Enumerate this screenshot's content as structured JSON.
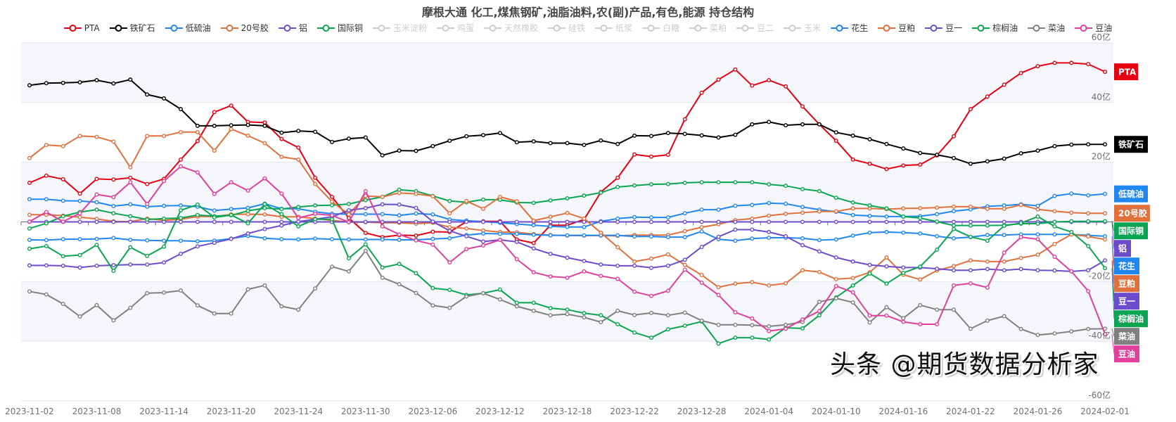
{
  "chart_data": {
    "type": "line",
    "title": "摩根大通 化工,煤焦钢矿,油脂油料,农(副)产品,有色,能源 持仓结构",
    "ylim": [
      -60,
      60
    ],
    "y_ticks": [
      "60亿",
      "40亿",
      "20亿",
      "-20亿",
      "-40亿",
      "-60亿"
    ],
    "grid": true,
    "legend_position": "top",
    "x_tick_labels": [
      "2023-11-02",
      "2023-11-08",
      "2023-11-14",
      "2023-11-20",
      "2023-11-24",
      "2023-11-30",
      "2023-12-06",
      "2023-12-12",
      "2023-12-18",
      "2023-12-22",
      "2023-12-28",
      "2024-01-04",
      "2024-01-10",
      "2024-01-16",
      "2024-01-22",
      "2024-01-26",
      "2024-02-01"
    ],
    "categories": [
      "2023-11-02",
      "2023-11-03",
      "2023-11-06",
      "2023-11-07",
      "2023-11-08",
      "2023-11-09",
      "2023-11-10",
      "2023-11-13",
      "2023-11-14",
      "2023-11-15",
      "2023-11-16",
      "2023-11-17",
      "2023-11-20",
      "2023-11-21",
      "2023-11-22",
      "2023-11-23",
      "2023-11-24",
      "2023-11-27",
      "2023-11-28",
      "2023-11-29",
      "2023-11-30",
      "2023-12-01",
      "2023-12-04",
      "2023-12-05",
      "2023-12-06",
      "2023-12-07",
      "2023-12-08",
      "2023-12-11",
      "2023-12-12",
      "2023-12-13",
      "2023-12-14",
      "2023-12-15",
      "2023-12-18",
      "2023-12-19",
      "2023-12-20",
      "2023-12-21",
      "2023-12-22",
      "2023-12-25",
      "2023-12-26",
      "2023-12-27",
      "2023-12-28",
      "2023-12-29",
      "2024-01-02",
      "2024-01-03",
      "2024-01-04",
      "2024-01-05",
      "2024-01-08",
      "2024-01-09",
      "2024-01-10",
      "2024-01-11",
      "2024-01-12",
      "2024-01-15",
      "2024-01-16",
      "2024-01-17",
      "2024-01-18",
      "2024-01-19",
      "2024-01-22",
      "2024-01-23",
      "2024-01-24",
      "2024-01-25",
      "2024-01-26",
      "2024-01-29",
      "2024-01-30",
      "2024-01-31",
      "2024-02-01"
    ],
    "legend": [
      {
        "name": "PTA",
        "color": "#e60012",
        "active": true
      },
      {
        "name": "铁矿石",
        "color": "#000000",
        "active": true
      },
      {
        "name": "低硫油",
        "color": "#1e88f0",
        "active": true
      },
      {
        "name": "20号胶",
        "color": "#e2703c",
        "active": true
      },
      {
        "name": "铝",
        "color": "#6c4ccc",
        "active": true
      },
      {
        "name": "国际铜",
        "color": "#0aa552",
        "active": true
      },
      {
        "name": "玉米淀粉",
        "color": "#cccccc",
        "active": false
      },
      {
        "name": "鸡蛋",
        "color": "#cccccc",
        "active": false
      },
      {
        "name": "天然橡胶",
        "color": "#cccccc",
        "active": false
      },
      {
        "name": "硅铁",
        "color": "#cccccc",
        "active": false
      },
      {
        "name": "纸浆",
        "color": "#cccccc",
        "active": false
      },
      {
        "name": "白糖",
        "color": "#cccccc",
        "active": false
      },
      {
        "name": "菜粕",
        "color": "#cccccc",
        "active": false
      },
      {
        "name": "豆二",
        "color": "#cccccc",
        "active": false
      },
      {
        "name": "玉米",
        "color": "#cccccc",
        "active": false
      },
      {
        "name": "花生",
        "color": "#1e88f0",
        "active": true
      },
      {
        "name": "豆粕",
        "color": "#e2703c",
        "active": true
      },
      {
        "name": "豆一",
        "color": "#6c4ccc",
        "active": true
      },
      {
        "name": "棕榈油",
        "color": "#0aa552",
        "active": true
      },
      {
        "name": "菜油",
        "color": "#808080",
        "active": true
      },
      {
        "name": "豆油",
        "color": "#e0409b",
        "active": true
      }
    ],
    "series": [
      {
        "name": "PTA",
        "color": "#e60012",
        "values": [
          13.1,
          15.5,
          14.3,
          9.5,
          14.4,
          14.2,
          14.8,
          12.7,
          14.4,
          20.9,
          27.1,
          36.8,
          39.0,
          33.5,
          33.3,
          27.8,
          24.9,
          14.8,
          8.4,
          1.3,
          -3.7,
          -5.1,
          -4.4,
          -4.6,
          -3.3,
          -3.4,
          0.1,
          0.2,
          0.2,
          -5.9,
          -7.1,
          -1.1,
          -1.1,
          0.8,
          10.0,
          14.8,
          22.6,
          21.9,
          22.5,
          34.4,
          43.3,
          47.7,
          51.1,
          45.7,
          47.5,
          45.4,
          38.7,
          32.7,
          27.2,
          20.9,
          19.5,
          17.7,
          18.9,
          19.2,
          22.3,
          28.7,
          37.8,
          42.0,
          46.0,
          49.9,
          52.2,
          53.3,
          53.3,
          52.9,
          50.3
        ]
      },
      {
        "name": "铁矿石",
        "color": "#000000",
        "values": [
          45.8,
          46.5,
          46.6,
          46.8,
          47.5,
          46.4,
          47.7,
          42.7,
          41.4,
          37.8,
          32.2,
          32.2,
          32.4,
          32.5,
          32.2,
          29.9,
          30.5,
          30.2,
          26.8,
          27.9,
          28.3,
          22.3,
          23.9,
          23.8,
          25.4,
          27.2,
          28.7,
          29.1,
          29.8,
          26.7,
          27.0,
          26.4,
          26.4,
          25.8,
          27.3,
          26.1,
          28.9,
          28.8,
          29.8,
          29.5,
          29.0,
          28.3,
          29.2,
          32.7,
          33.5,
          32.4,
          32.7,
          32.7,
          30.0,
          28.9,
          27.7,
          26.1,
          24.6,
          23.1,
          22.5,
          21.4,
          19.5,
          20.3,
          21.2,
          23.0,
          23.9,
          25.4,
          25.9,
          26.0,
          26.0
        ]
      },
      {
        "name": "低硫油",
        "color": "#1e88f0",
        "values": [
          7.6,
          7.6,
          7.1,
          7.0,
          6.6,
          5.3,
          5.9,
          5.1,
          5.4,
          5.5,
          5.1,
          3.8,
          4.3,
          4.7,
          6.1,
          4.4,
          4.4,
          3.4,
          2.7,
          2.6,
          2.6,
          2.6,
          2.2,
          2.8,
          2.5,
          0.8,
          0.4,
          0.1,
          -0.3,
          -0.7,
          -1.1,
          -1.5,
          -1.7,
          -1.7,
          0.2,
          1.1,
          1.6,
          1.5,
          1.5,
          2.9,
          4.1,
          4.1,
          5.4,
          5.7,
          6.3,
          6.1,
          5.0,
          4.1,
          3.4,
          2.3,
          2.0,
          1.8,
          1.8,
          1.9,
          2.6,
          3.6,
          4.2,
          5.2,
          5.5,
          5.9,
          5.4,
          8.7,
          9.5,
          8.9,
          9.4
        ]
      },
      {
        "name": "20号胶",
        "color": "#e2703c",
        "values": [
          2.4,
          2.4,
          2.1,
          1.6,
          1.0,
          0.2,
          0.1,
          1.1,
          0.5,
          0.9,
          1.8,
          1.8,
          2.5,
          2.6,
          2.5,
          1.7,
          1.7,
          1.1,
          0.5,
          -0.1,
          -0.1,
          -0.3,
          -0.3,
          -0.6,
          -0.3,
          -1.8,
          -2.2,
          -2.9,
          -3.4,
          -3.5,
          -4.1,
          -4.4,
          -4.6,
          -4.6,
          -4.6,
          -4.7,
          -4.4,
          -4.4,
          -4.4,
          -3.1,
          -1.8,
          -0.8,
          0.6,
          1.1,
          2.1,
          2.7,
          3.1,
          3.5,
          3.5,
          4.5,
          4.5,
          4.3,
          4.5,
          4.6,
          4.8,
          5.1,
          5.1,
          4.4,
          4.4,
          5.7,
          4.2,
          3.6,
          3.1,
          2.9,
          2.9
        ]
      },
      {
        "name": "铝",
        "color": "#6c4ccc",
        "values": [
          0,
          0,
          0,
          0,
          0,
          0,
          0,
          0,
          0,
          0,
          0,
          0,
          0,
          0,
          0,
          0,
          0,
          0,
          0,
          0,
          0,
          0,
          0,
          0,
          0,
          0,
          0,
          0,
          0,
          0,
          0,
          0,
          0,
          0,
          0,
          0,
          0,
          0,
          0,
          0,
          0,
          0,
          0,
          0,
          0,
          0,
          0,
          0,
          0,
          0,
          0,
          0,
          0,
          0,
          0,
          0,
          0,
          0,
          0,
          0,
          0,
          0,
          0,
          0,
          0
        ]
      },
      {
        "name": "国际铜",
        "color": "#0aa552",
        "values": [
          -2.2,
          -0.5,
          1.9,
          3.3,
          4.1,
          2.9,
          1.9,
          0.8,
          1.1,
          1.3,
          2.3,
          1.9,
          2.2,
          3.7,
          4.6,
          4.3,
          5.0,
          5.5,
          5.6,
          6.0,
          7.3,
          8.4,
          10.8,
          10.3,
          8.7,
          7.0,
          6.6,
          7.5,
          7.4,
          6.5,
          6.4,
          7.2,
          7.9,
          8.8,
          9.8,
          11.7,
          12.2,
          12.6,
          12.7,
          13.1,
          13.3,
          13.3,
          13.3,
          13.3,
          12.6,
          12.1,
          11.0,
          10.3,
          8.1,
          6.5,
          5.5,
          4.5,
          1.8,
          1.3,
          0.1,
          -1.2,
          -1.2,
          -1.2,
          -1.1,
          -0.6,
          -0.6,
          0,
          0.2,
          0.2,
          0.2
        ]
      },
      {
        "name": "花生",
        "color": "#1e88f0",
        "values": [
          -6.0,
          -6.1,
          -5.8,
          -5.8,
          -5.7,
          -5.4,
          -6.0,
          -6.2,
          -6.3,
          -6.3,
          -6.5,
          -6.3,
          -5.6,
          -4.7,
          -5.5,
          -5.8,
          -5.9,
          -5.6,
          -5.8,
          -5.9,
          -5.9,
          -5.9,
          -6.0,
          -6.0,
          -5.7,
          -5.5,
          -4.4,
          -3.9,
          -4.0,
          -4.0,
          -4.3,
          -4.5,
          -4.5,
          -4.5,
          -4.5,
          -4.5,
          -4.9,
          -4.9,
          -5.1,
          -5.1,
          -3.2,
          -5.8,
          -6.3,
          -5.6,
          -5.3,
          -5.3,
          -5.5,
          -6.1,
          -5.9,
          -4.6,
          -3.6,
          -3.4,
          -3.6,
          -3.9,
          -4.8,
          -5.5,
          -5.1,
          -4.4,
          -4.4,
          -4.2,
          -4.2,
          -4.2,
          -4.2,
          -4.5,
          -4.8
        ]
      },
      {
        "name": "豆粕",
        "color": "#e2703c",
        "values": [
          21.4,
          25.8,
          25.4,
          28.8,
          28.5,
          26.9,
          18.3,
          28.8,
          28.8,
          30.1,
          30.1,
          23.9,
          31.1,
          28.9,
          26.4,
          21.8,
          20.9,
          12.7,
          6.8,
          2.5,
          8.7,
          8.4,
          9.7,
          9.4,
          8.6,
          2.9,
          7.0,
          4.4,
          8.4,
          6.9,
          0.4,
          1.7,
          3.0,
          1.1,
          -3.6,
          -8.5,
          -13.3,
          -12.3,
          -10.9,
          -14.4,
          -17.8,
          -21.9,
          -20.7,
          -20.2,
          -21.3,
          -20.6,
          -16.2,
          -16.8,
          -19.2,
          -18.8,
          -16.9,
          -11.9,
          -17.7,
          -19.3,
          -16.3,
          -14.8,
          -12.9,
          -13.3,
          -13.3,
          -12.1,
          -11.0,
          -7.4,
          -4.2,
          -4.9,
          -5.9
        ]
      },
      {
        "name": "豆一",
        "color": "#6c4ccc",
        "values": [
          -14.6,
          -14.6,
          -14.7,
          -15.3,
          -14.7,
          -14.5,
          -14.3,
          -14.3,
          -13.6,
          -10.7,
          -8.2,
          -7.0,
          -5.7,
          -3.9,
          -2.4,
          -1.2,
          0.1,
          0.9,
          1.7,
          3.9,
          4.6,
          5.9,
          5.8,
          4.7,
          0.1,
          -3.0,
          -4.8,
          -6.6,
          -6.0,
          -6.7,
          -8.9,
          -10.7,
          -12.0,
          -13.1,
          -14.3,
          -14.7,
          -14.7,
          -15.4,
          -14.7,
          -12.7,
          -8.4,
          -5.0,
          -2.6,
          -2.6,
          -3.4,
          -4.8,
          -7.8,
          -9.9,
          -11.9,
          -13.3,
          -14.4,
          -14.9,
          -15.3,
          -15.3,
          -15.7,
          -16.2,
          -16.2,
          -15.8,
          -16.2,
          -15.8,
          -16.2,
          -16.3,
          -16.6,
          -16.2,
          -12.9
        ]
      },
      {
        "name": "棕榈油",
        "color": "#0aa552",
        "values": [
          -9.0,
          -8.1,
          -11.5,
          -11.1,
          -7.7,
          -16.4,
          -8.5,
          -11.4,
          -8.3,
          3.9,
          5.8,
          1.5,
          2.3,
          -0.5,
          6.0,
          2.6,
          -1.5,
          0.9,
          0.9,
          -12.2,
          -7.5,
          -15.3,
          -14.1,
          -17.2,
          -22.2,
          -22.8,
          -24.5,
          -23.9,
          -22.7,
          -27.1,
          -27.1,
          -28.9,
          -29.4,
          -30.6,
          -31.3,
          -34.3,
          -37.1,
          -38.8,
          -36.0,
          -34.8,
          -33.4,
          -40.8,
          -38.8,
          -38.8,
          -39.4,
          -35.5,
          -35.7,
          -31.3,
          -25.3,
          -21.3,
          -17.3,
          -20.7,
          -17.1,
          -15.0,
          -9.3,
          -2.4,
          -5.0,
          -6.3,
          -1.3,
          -0.4,
          1.8,
          -1.5,
          -3.4,
          -8.1,
          -15.5
        ]
      },
      {
        "name": "菜油",
        "color": "#808080",
        "values": [
          -23.3,
          -24.3,
          -27.5,
          -31.7,
          -27.9,
          -33.0,
          -28.8,
          -23.9,
          -23.7,
          -23.0,
          -28.0,
          -30.7,
          -30.7,
          -22.6,
          -21.3,
          -28.3,
          -29.4,
          -22.3,
          -15.0,
          -16.6,
          -9.7,
          -18.7,
          -20.9,
          -23.8,
          -28.0,
          -28.8,
          -25.0,
          -23.9,
          -26.0,
          -28.3,
          -29.8,
          -31.3,
          -30.9,
          -32.0,
          -33.6,
          -29.8,
          -31.2,
          -30.5,
          -31.3,
          -30.4,
          -33.1,
          -34.5,
          -34.5,
          -34.6,
          -35.0,
          -34.5,
          -33.5,
          -26.8,
          -25.6,
          -27.0,
          -33.7,
          -28.6,
          -32.3,
          -27.9,
          -29.4,
          -29.4,
          -35.8,
          -33.1,
          -31.6,
          -35.9,
          -37.9,
          -37.4,
          -36.7,
          -35.9,
          -35.8
        ]
      },
      {
        "name": "豆油",
        "color": "#e0409b",
        "values": [
          0.1,
          3.3,
          0.1,
          2.9,
          9.2,
          8.3,
          13.3,
          6.0,
          13.7,
          18.6,
          16.6,
          9.4,
          13.3,
          10.5,
          14.6,
          9.5,
          1.3,
          2.7,
          2.2,
          -0.1,
          10.3,
          -1.5,
          -4.2,
          -6.2,
          -7.6,
          -13.6,
          -9.1,
          -7.9,
          -6.0,
          -12.5,
          -16.9,
          -18.3,
          -18.7,
          -16.6,
          -18.1,
          -19.1,
          -23.4,
          -24.8,
          -23.1,
          -16.0,
          -20.4,
          -24.5,
          -30.3,
          -32.4,
          -36.6,
          -35.8,
          -32.7,
          -29.9,
          -21.5,
          -23.6,
          -31.4,
          -31.4,
          -33.5,
          -34.3,
          -34.3,
          -21.3,
          -20.6,
          -22.0,
          -10.3,
          -5.1,
          -5.8,
          -11.7,
          -16.6,
          -23.2,
          -37.6
        ]
      }
    ]
  },
  "watermark": "头条 @期货数据分析家"
}
